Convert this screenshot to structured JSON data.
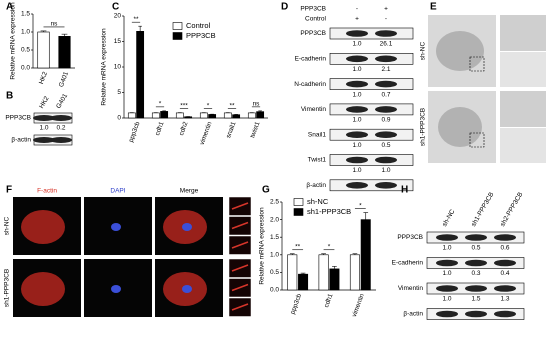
{
  "chart_data": [
    {
      "type": "bar",
      "panel": "A",
      "ylabel": "Relative mRNA expression",
      "categories": [
        "HK2",
        "G401"
      ],
      "values": [
        1.0,
        0.88
      ],
      "errors": [
        0.03,
        0.06
      ],
      "colors": [
        "#ffffff",
        "#000000"
      ],
      "ylim": [
        0,
        1.5
      ],
      "yticks": [
        {
          "value": 0,
          "label": "0.0"
        },
        {
          "value": 0.5,
          "label": "0.5"
        },
        {
          "value": 1,
          "label": "1.0"
        },
        {
          "value": 1.5,
          "label": "1.5"
        }
      ],
      "annotations": [
        "ns"
      ]
    },
    {
      "type": "bar",
      "panel": "C",
      "ylabel": "Relative mRNA expression",
      "categories": [
        "ppp3cb",
        "cdh1",
        "cdh2",
        "vimentin",
        "snail1",
        "twist1"
      ],
      "series": [
        {
          "name": "Control",
          "color": "#ffffff",
          "values": [
            1,
            1,
            1,
            1,
            1,
            1
          ],
          "errors": [
            0.05,
            0.05,
            0.05,
            0.05,
            0.05,
            0.05
          ]
        },
        {
          "name": "PPP3CB",
          "color": "#000000",
          "values": [
            17,
            1.3,
            0.25,
            0.7,
            0.65,
            1.25
          ],
          "errors": [
            1.0,
            0.1,
            0.03,
            0.05,
            0.05,
            0.15
          ]
        }
      ],
      "ylim": [
        0,
        20
      ],
      "yticks": [
        0,
        5,
        10,
        15,
        20
      ],
      "legend": "upper right",
      "annotations": [
        "**",
        "*",
        "***",
        "*",
        "**",
        "ns"
      ]
    },
    {
      "type": "bar",
      "panel": "G",
      "ylabel": "Relative mRNA expression",
      "categories": [
        "ppp3cb",
        "cdh1",
        "vimentin"
      ],
      "series": [
        {
          "name": "sh-NC",
          "color": "#ffffff",
          "values": [
            1,
            1,
            1
          ],
          "errors": [
            0.03,
            0.03,
            0.03
          ]
        },
        {
          "name": "sh1-PPP3CB",
          "color": "#000000",
          "values": [
            0.45,
            0.6,
            2.0
          ],
          "errors": [
            0.03,
            0.07,
            0.2
          ]
        }
      ],
      "ylim": [
        0,
        2.5
      ],
      "yticks": [
        {
          "value": 0,
          "label": "0.0"
        },
        {
          "value": 0.5,
          "label": "0.5"
        },
        {
          "value": 1,
          "label": "1.0"
        },
        {
          "value": 1.5,
          "label": "1.5"
        },
        {
          "value": 2,
          "label": "2.0"
        },
        {
          "value": 2.5,
          "label": "2.5"
        }
      ],
      "legend": "upper left",
      "annotations": [
        "**",
        "*",
        "*"
      ]
    }
  ],
  "blots": [
    {
      "panel": "B",
      "lanes": [
        "HK2",
        "G401"
      ],
      "rows": [
        {
          "name": "PPP3CB",
          "values": [
            "1.0",
            "0.2"
          ]
        },
        {
          "name": "β-actin",
          "values": []
        }
      ]
    },
    {
      "panel": "D",
      "conditions": [
        {
          "name": "PPP3CB",
          "values": [
            "-",
            "+"
          ]
        },
        {
          "name": "Control",
          "values": [
            "+",
            "-"
          ]
        }
      ],
      "rows": [
        {
          "name": "PPP3CB",
          "values": [
            "1.0",
            "26.1"
          ]
        },
        {
          "name": "E-cadherin",
          "values": [
            "1.0",
            "2.1"
          ]
        },
        {
          "name": "N-cadherin",
          "values": [
            "1.0",
            "0.7"
          ]
        },
        {
          "name": "Vimentin",
          "values": [
            "1.0",
            "0.9"
          ]
        },
        {
          "name": "Snail1",
          "values": [
            "1.0",
            "0.5"
          ]
        },
        {
          "name": "Twist1",
          "values": [
            "1.0",
            "1.0"
          ]
        },
        {
          "name": "β-actin",
          "values": []
        }
      ]
    },
    {
      "panel": "H",
      "lanes": [
        "sh-NC",
        "sh1-PPP3CB",
        "sh2-PPP3CB"
      ],
      "rows": [
        {
          "name": "PPP3CB",
          "values": [
            "1.0",
            "0.5",
            "0.6"
          ]
        },
        {
          "name": "E-cadherin",
          "values": [
            "1.0",
            "0.3",
            "0.4"
          ]
        },
        {
          "name": "Vimentin",
          "values": [
            "1.0",
            "1.5",
            "1.3"
          ]
        },
        {
          "name": "β-actin",
          "values": []
        }
      ]
    }
  ],
  "images": [
    {
      "panel": "E",
      "row_labels": [
        "sh-NC",
        "sh1-PPP3CB"
      ]
    },
    {
      "panel": "F",
      "column_labels": [
        "F-actin",
        "DAPI",
        "Merge"
      ],
      "row_labels": [
        "sh-NC",
        "sh1-PPP3CB"
      ]
    }
  ]
}
